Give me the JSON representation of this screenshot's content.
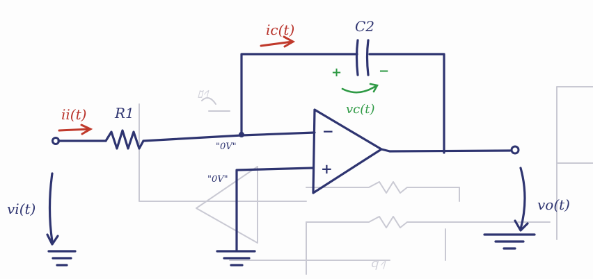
{
  "labels": {
    "ic": "ic(t)",
    "c2": "C2",
    "vc": "vc(t)",
    "cap_plus": "+",
    "cap_minus": "−",
    "ii": "ii(t)",
    "r1": "R1",
    "ov_inverting": "\"0V\"",
    "ov_noninverting": "\"0V\"",
    "opamp_minus": "−",
    "opamp_plus": "+",
    "vi": "vi(t)",
    "vo": "vo(t)"
  },
  "colors": {
    "ink": "#2e3470",
    "current": "#c0392b",
    "voltage": "#2f9a45",
    "bleed_through": "#c9c9d3"
  }
}
